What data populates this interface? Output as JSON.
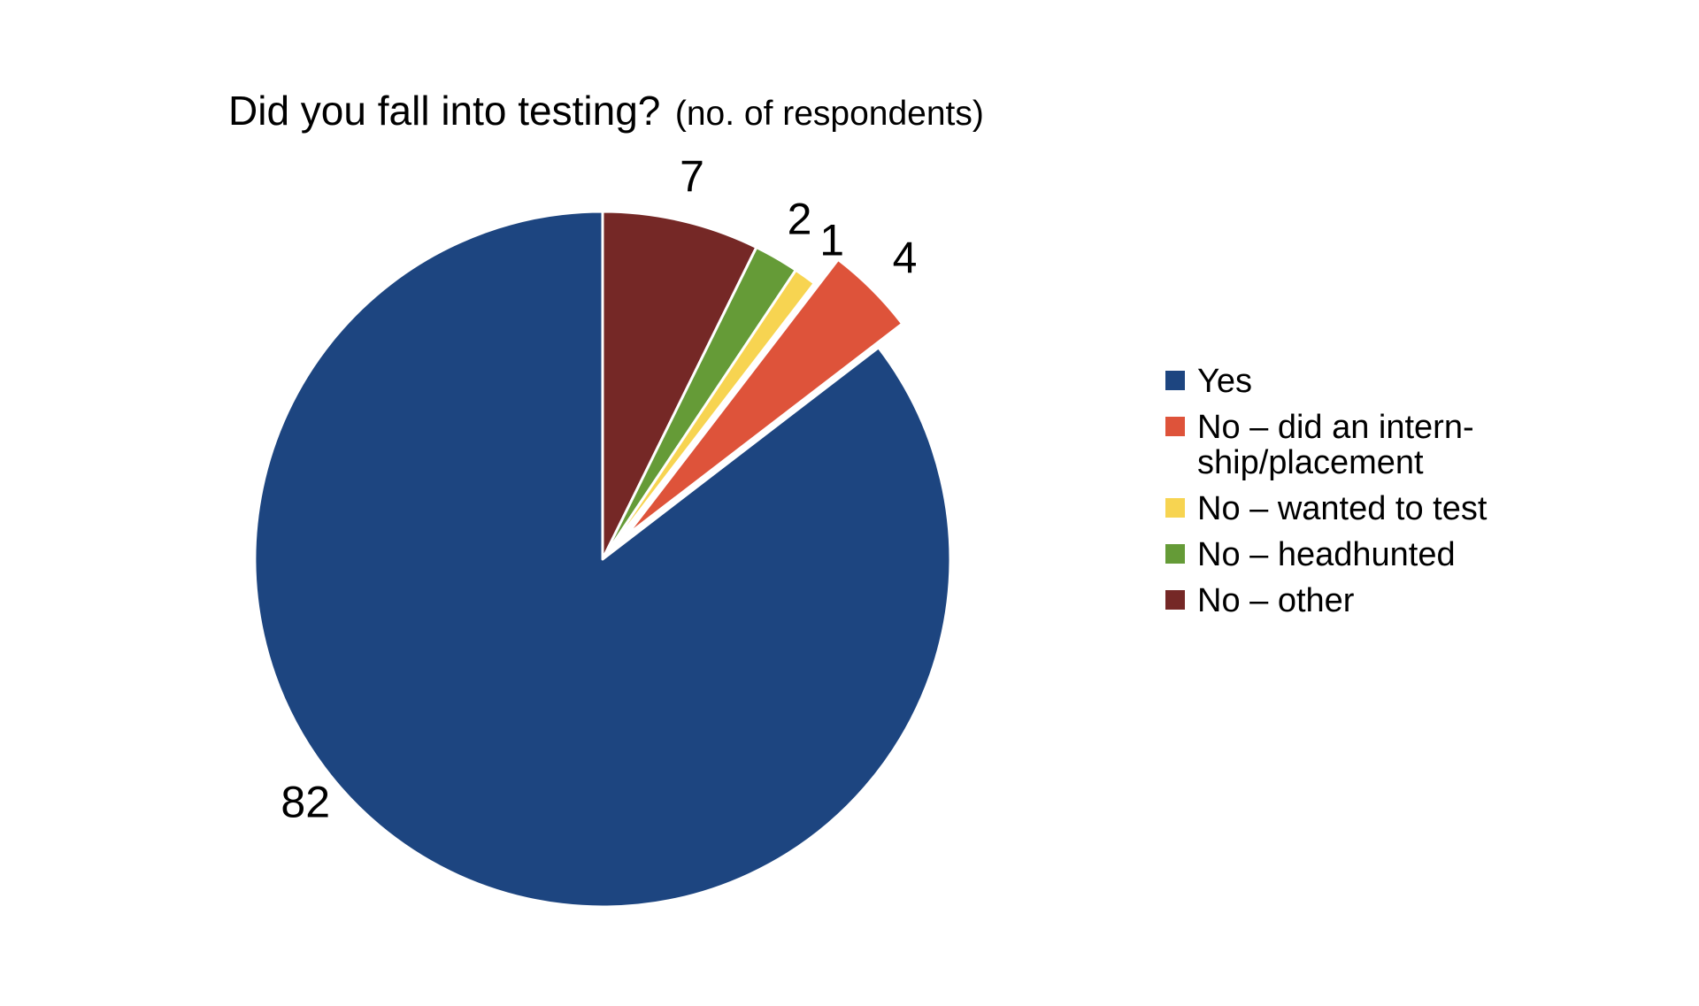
{
  "chart_data": {
    "type": "pie",
    "title": "Did you fall into testing?",
    "subtitle": "(no. of respondents)",
    "legend_position": "right",
    "slices": [
      {
        "label": "Yes",
        "legend_lines": [
          "Yes"
        ],
        "value": 82,
        "color": "#1d4580",
        "exploded": false
      },
      {
        "label": "No – did an internship/placement",
        "legend_lines": [
          "No – did an intern-",
          "ship/placement"
        ],
        "value": 4,
        "color": "#de533a",
        "exploded": true
      },
      {
        "label": "No – wanted to test",
        "legend_lines": [
          "No – wanted to test"
        ],
        "value": 1,
        "color": "#f7d451",
        "exploded": false
      },
      {
        "label": "No – headhunted",
        "legend_lines": [
          "No – headhunted"
        ],
        "value": 2,
        "color": "#659b37",
        "exploded": false
      },
      {
        "label": "No – other",
        "legend_lines": [
          "No – other"
        ],
        "value": 7,
        "color": "#752826",
        "exploded": false
      }
    ]
  }
}
